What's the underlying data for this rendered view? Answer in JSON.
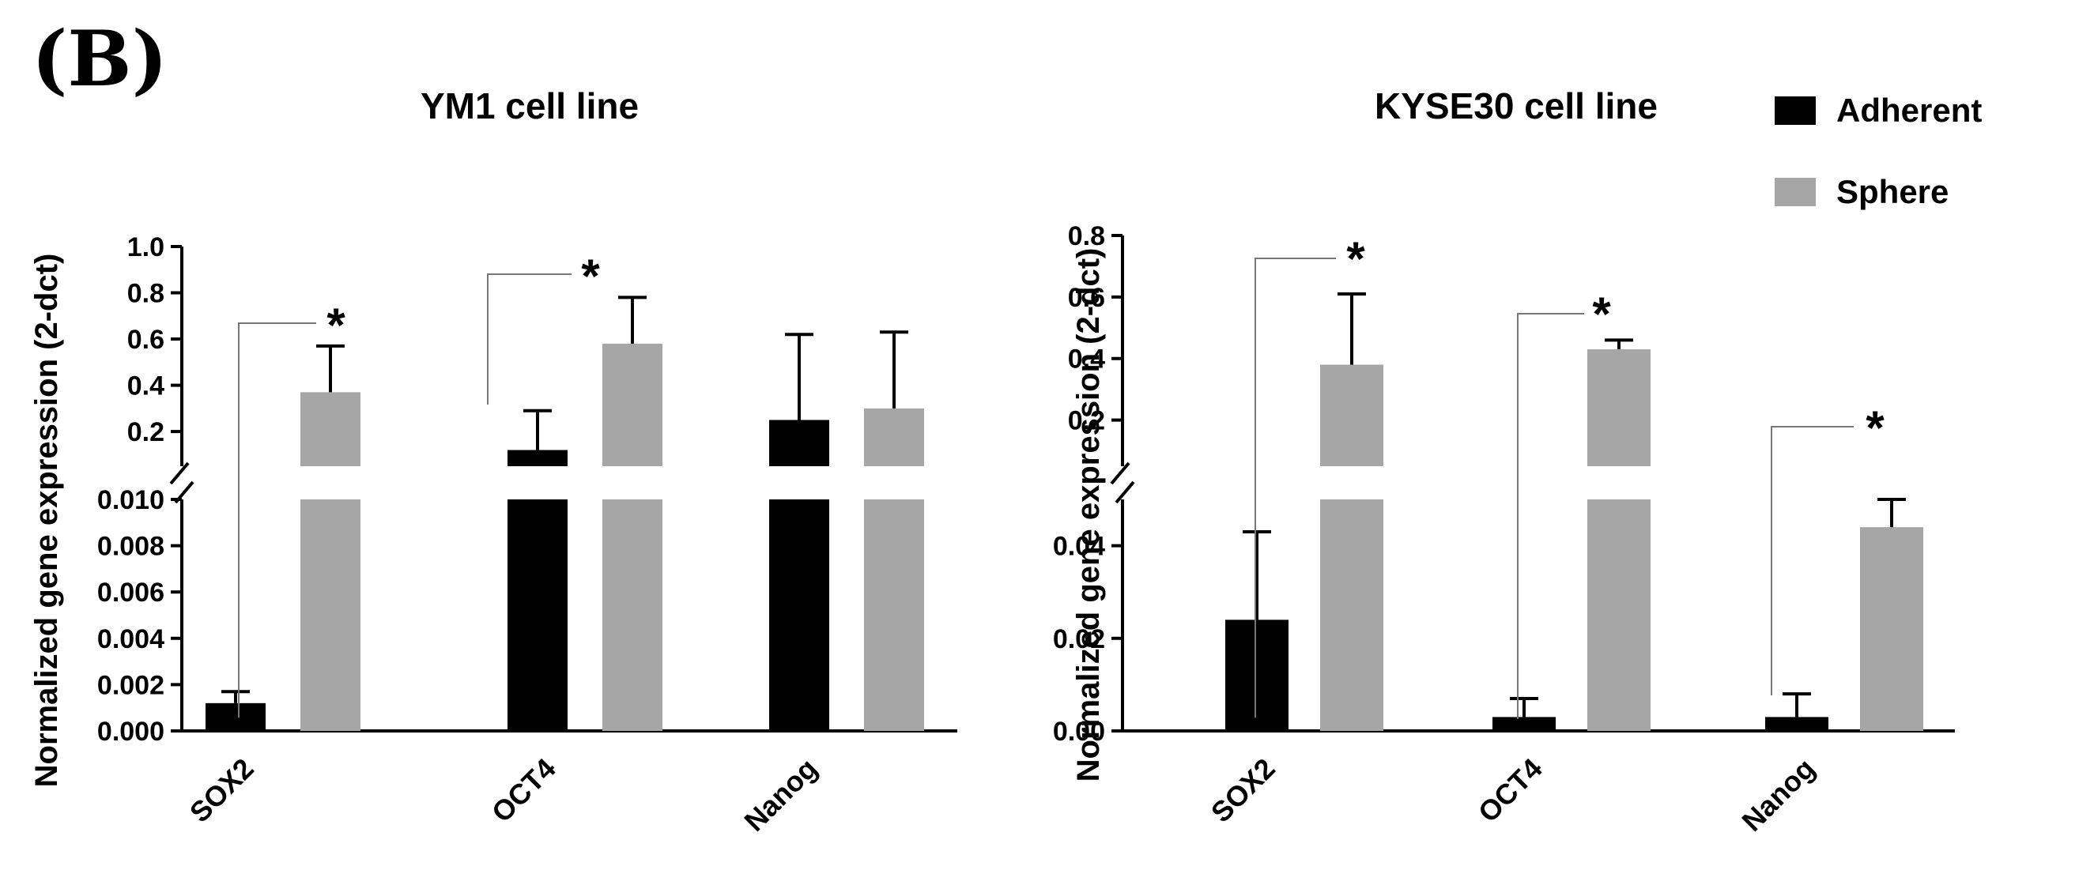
{
  "figure": {
    "panel_label": "(B)"
  },
  "legend": {
    "position": "top-right",
    "items": [
      {
        "label": "Adherent",
        "color": "#000000"
      },
      {
        "label": "Sphere",
        "color": "#a6a6a6"
      }
    ]
  },
  "chart_data": [
    {
      "type": "bar",
      "title": "YM1 cell line",
      "ylabel": "Normalized gene expression (2-dct)",
      "xlabel": "",
      "categories": [
        "SOX2",
        "OCT4",
        "Nanog"
      ],
      "series": [
        {
          "name": "Adherent",
          "color": "#000000",
          "values": [
            0.0012,
            0.12,
            0.25
          ],
          "errors": [
            0.0005,
            0.17,
            0.37
          ]
        },
        {
          "name": "Sphere",
          "color": "#a6a6a6",
          "values": [
            0.37,
            0.58,
            0.3
          ],
          "errors": [
            0.2,
            0.2,
            0.33
          ]
        }
      ],
      "broken_axis": true,
      "lower_range": [
        0,
        0.01
      ],
      "upper_range": [
        0.05,
        1.0
      ],
      "lower_ticks": [
        "0.000",
        "0.002",
        "0.004",
        "0.006",
        "0.008",
        "0.010"
      ],
      "upper_ticks": [
        "0.2",
        "0.4",
        "0.6",
        "0.8",
        "1.0"
      ],
      "significance": [
        "*",
        "*",
        ""
      ],
      "grid": false
    },
    {
      "type": "bar",
      "title": "KYSE30 cell line",
      "ylabel": "Normalized gene expression (2-dct)",
      "xlabel": "",
      "categories": [
        "SOX2",
        "OCT4",
        "Nanog"
      ],
      "series": [
        {
          "name": "Adherent",
          "color": "#000000",
          "values": [
            0.024,
            0.003,
            0.003
          ],
          "errors": [
            0.019,
            0.004,
            0.005
          ]
        },
        {
          "name": "Sphere",
          "color": "#a6a6a6",
          "values": [
            0.38,
            0.43,
            0.044
          ],
          "errors": [
            0.23,
            0.03,
            0.006
          ]
        }
      ],
      "broken_axis": true,
      "lower_range": [
        0,
        0.05
      ],
      "upper_range": [
        0.05,
        0.8
      ],
      "lower_ticks": [
        "0.00",
        "0.02",
        "0.04"
      ],
      "upper_ticks": [
        "0.2",
        "0.4",
        "0.6",
        "0.8"
      ],
      "significance": [
        "*",
        "*",
        "*"
      ],
      "grid": false
    }
  ]
}
